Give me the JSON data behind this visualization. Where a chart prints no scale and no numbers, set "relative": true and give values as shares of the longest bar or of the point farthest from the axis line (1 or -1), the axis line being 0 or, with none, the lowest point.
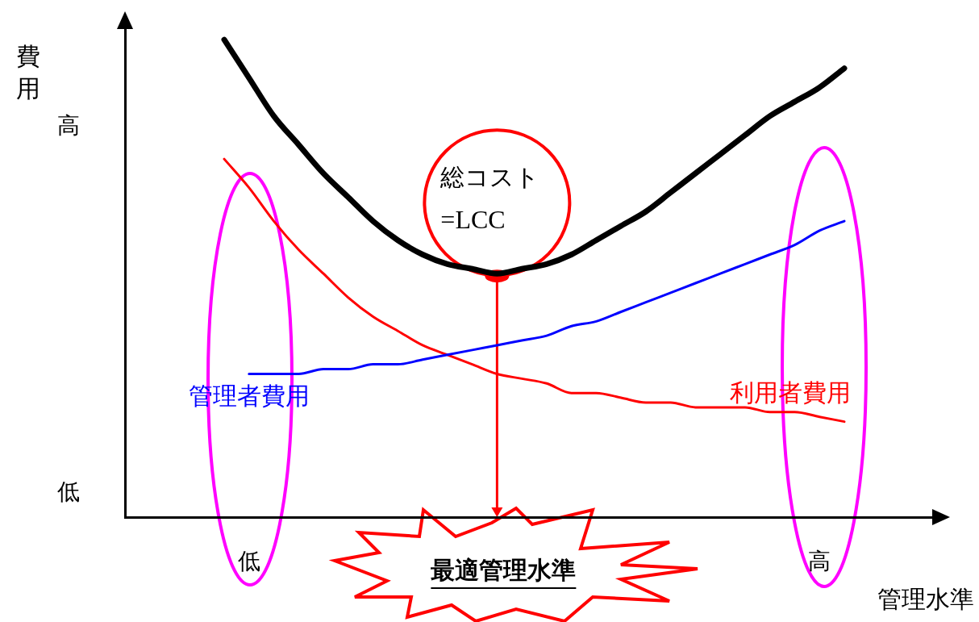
{
  "chart_data": {
    "type": "line",
    "relative": true,
    "ylabel": "費用",
    "xlabel": "管理水準",
    "categories": [
      null,
      null,
      null,
      null,
      null,
      "低",
      null,
      null,
      null,
      null,
      null,
      null,
      null,
      null,
      null,
      null,
      null,
      null,
      null,
      null,
      null,
      null,
      null,
      null,
      null,
      null,
      null,
      null,
      "高",
      null,
      null,
      null,
      null,
      null
    ],
    "series": [
      {
        "color": "#000000",
        "values": [
          null,
          null,
          null,
          null,
          1.0,
          0.92,
          0.84,
          0.78,
          0.72,
          0.67,
          0.62,
          0.58,
          0.55,
          0.53,
          0.52,
          0.51,
          0.52,
          0.53,
          0.55,
          0.58,
          0.61,
          0.64,
          0.68,
          0.72,
          0.76,
          0.8,
          0.84,
          0.87,
          0.9,
          0.94,
          null,
          null,
          null,
          null
        ]
      },
      {
        "name": "管理者費用",
        "color": "#0000ff",
        "values": [
          null,
          null,
          null,
          null,
          null,
          0.3,
          0.3,
          0.3,
          0.31,
          0.31,
          0.32,
          0.32,
          0.33,
          0.34,
          0.35,
          0.36,
          0.37,
          0.38,
          0.4,
          0.41,
          0.43,
          0.45,
          0.47,
          0.49,
          0.51,
          0.53,
          0.55,
          0.57,
          0.6,
          0.62,
          null,
          null,
          null,
          null
        ]
      },
      {
        "name": "利用者費用",
        "color": "#ff0000",
        "values": [
          null,
          null,
          null,
          null,
          0.75,
          0.69,
          0.62,
          0.56,
          0.51,
          0.46,
          0.42,
          0.39,
          0.36,
          0.34,
          0.32,
          0.3,
          0.29,
          0.28,
          0.26,
          0.26,
          0.25,
          0.24,
          0.24,
          0.23,
          0.23,
          0.23,
          0.22,
          0.22,
          0.21,
          0.2,
          null,
          null,
          null,
          null
        ]
      }
    ],
    "annotations": [
      {
        "text": "総コスト\n=LCC",
        "y": 0.51
      },
      "最適管理水準",
      "高",
      "低"
    ],
    "grid": false,
    "legend": false,
    "marker": "none",
    "line_style": "solid"
  }
}
